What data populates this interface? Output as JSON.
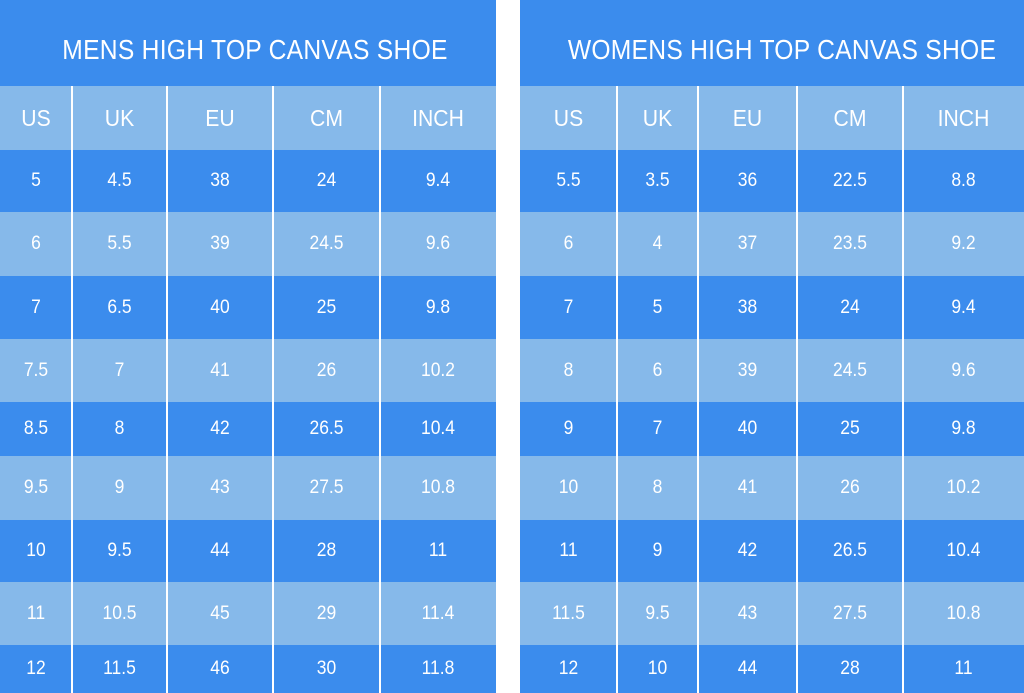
{
  "colors": {
    "band_dark": "#3b8ced",
    "band_light": "#86b9ea",
    "text": "#ffffff",
    "divider": "#ffffff"
  },
  "chart_data": [
    {
      "type": "table",
      "title": "MENS HIGH TOP CANVAS SHOE",
      "columns": [
        "US",
        "UK",
        "EU",
        "CM",
        "INCH"
      ],
      "rows": [
        [
          "5",
          "4.5",
          "38",
          "24",
          "9.4"
        ],
        [
          "6",
          "5.5",
          "39",
          "24.5",
          "9.6"
        ],
        [
          "7",
          "6.5",
          "40",
          "25",
          "9.8"
        ],
        [
          "7.5",
          "7",
          "41",
          "26",
          "10.2"
        ],
        [
          "8.5",
          "8",
          "42",
          "26.5",
          "10.4"
        ],
        [
          "9.5",
          "9",
          "43",
          "27.5",
          "10.8"
        ],
        [
          "10",
          "9.5",
          "44",
          "28",
          "11"
        ],
        [
          "11",
          "10.5",
          "45",
          "29",
          "11.4"
        ],
        [
          "12",
          "11.5",
          "46",
          "30",
          "11.8"
        ]
      ]
    },
    {
      "type": "table",
      "title": "WOMENS HIGH TOP CANVAS SHOE",
      "columns": [
        "US",
        "UK",
        "EU",
        "CM",
        "INCH"
      ],
      "rows": [
        [
          "5.5",
          "3.5",
          "36",
          "22.5",
          "8.8"
        ],
        [
          "6",
          "4",
          "37",
          "23.5",
          "9.2"
        ],
        [
          "7",
          "5",
          "38",
          "24",
          "9.4"
        ],
        [
          "8",
          "6",
          "39",
          "24.5",
          "9.6"
        ],
        [
          "9",
          "7",
          "40",
          "25",
          "9.8"
        ],
        [
          "10",
          "8",
          "41",
          "26",
          "10.2"
        ],
        [
          "11",
          "9",
          "42",
          "26.5",
          "10.4"
        ],
        [
          "11.5",
          "9.5",
          "43",
          "27.5",
          "10.8"
        ],
        [
          "12",
          "10",
          "44",
          "28",
          "11"
        ]
      ]
    }
  ]
}
